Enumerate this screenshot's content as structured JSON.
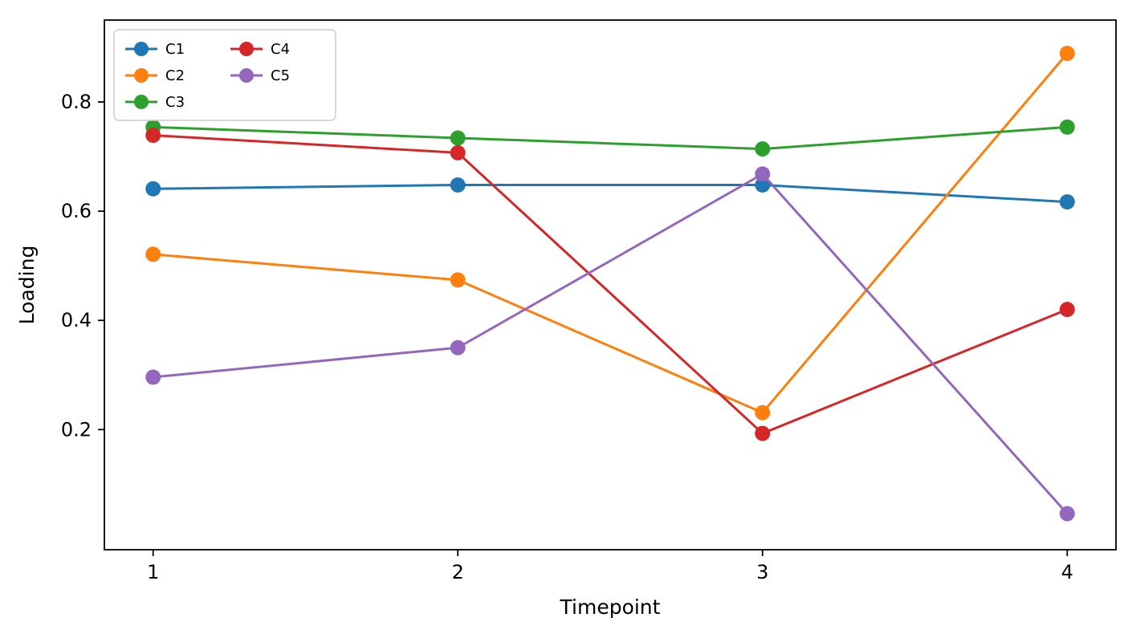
{
  "chart_data": {
    "type": "line",
    "title": "",
    "xlabel": "Timepoint",
    "ylabel": "Loading",
    "x": [
      1,
      2,
      3,
      4
    ],
    "x_tick_labels": [
      "1",
      "2",
      "3",
      "4"
    ],
    "y_ticks": [
      0.2,
      0.4,
      0.6,
      0.8
    ],
    "y_tick_labels": [
      "0.2",
      "0.4",
      "0.6",
      "0.8"
    ],
    "xlim": [
      0.84,
      4.16
    ],
    "ylim": [
      -0.02,
      0.95
    ],
    "grid": false,
    "legend_position": "upper-left",
    "legend_columns": 2,
    "legend_order": "column-major",
    "marker": "circle",
    "series": [
      {
        "name": "C1",
        "color": "#1f77b4",
        "values": [
          0.641,
          0.648,
          0.648,
          0.617
        ]
      },
      {
        "name": "C2",
        "color": "#ff7f0e",
        "values": [
          0.521,
          0.474,
          0.231,
          0.889
        ]
      },
      {
        "name": "C3",
        "color": "#2ca02c",
        "values": [
          0.754,
          0.734,
          0.714,
          0.754
        ]
      },
      {
        "name": "C4",
        "color": "#d62728",
        "values": [
          0.739,
          0.707,
          0.193,
          0.42
        ]
      },
      {
        "name": "C5",
        "color": "#9467bd",
        "values": [
          0.296,
          0.35,
          0.668,
          0.046
        ]
      }
    ]
  }
}
